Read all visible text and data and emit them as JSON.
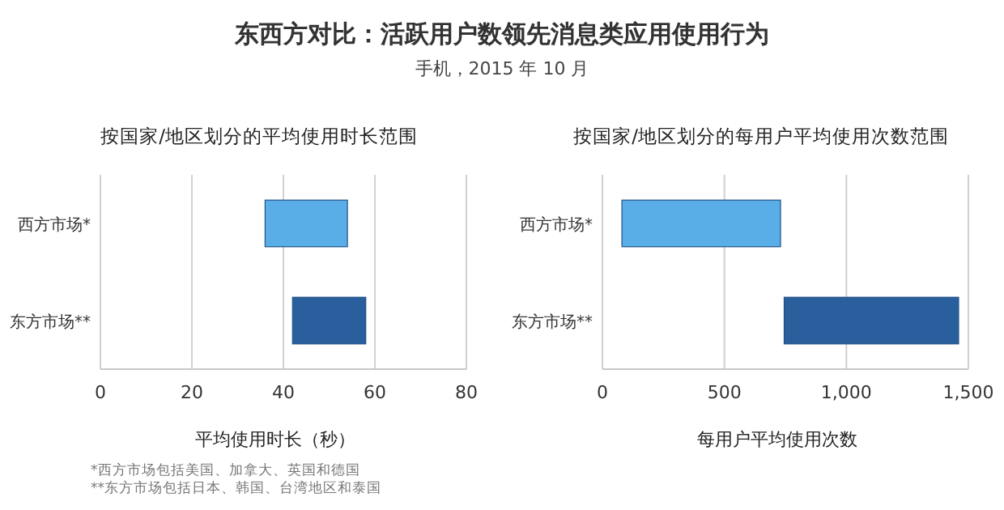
{
  "chart_data": [
    {
      "type": "other",
      "title": "东西方对比：活跃用户数领先消息类应用使用行为",
      "subtitle": "手机，2015 年 10 月"
    },
    {
      "type": "bar",
      "orientation": "horizontal",
      "title": "按国家/地区划分的平均使用时长范围",
      "xlabel": "平均使用时长（秒）",
      "categories": [
        "西方市场*",
        "东方市场**"
      ],
      "base": [
        36,
        42
      ],
      "values": [
        18,
        16
      ],
      "colors": [
        "#5aaee8",
        "#2a5f9e"
      ],
      "xlim": [
        0,
        80
      ],
      "xticks": [
        0,
        20,
        40,
        60,
        80
      ],
      "grid": "x",
      "annotations": [
        "*西方市场包括美国、加拿大、英国和德国",
        "**东方市场包括日本、韩国、台湾地区和泰国"
      ]
    },
    {
      "type": "bar",
      "orientation": "horizontal",
      "title": "按国家/地区划分的每用户平均使用次数范围",
      "xlabel": "每用户平均使用次数",
      "categories": [
        "西方市场*",
        "东方市场**"
      ],
      "base": [
        80,
        745
      ],
      "values": [
        650,
        715
      ],
      "colors": [
        "#5aaee8",
        "#2a5f9e"
      ],
      "xlim": [
        0,
        1500
      ],
      "xticks": [
        0,
        500,
        {
          "value": 1000,
          "label": "1,000"
        },
        {
          "value": 1500,
          "label": "1,500"
        }
      ],
      "grid": "x"
    }
  ]
}
